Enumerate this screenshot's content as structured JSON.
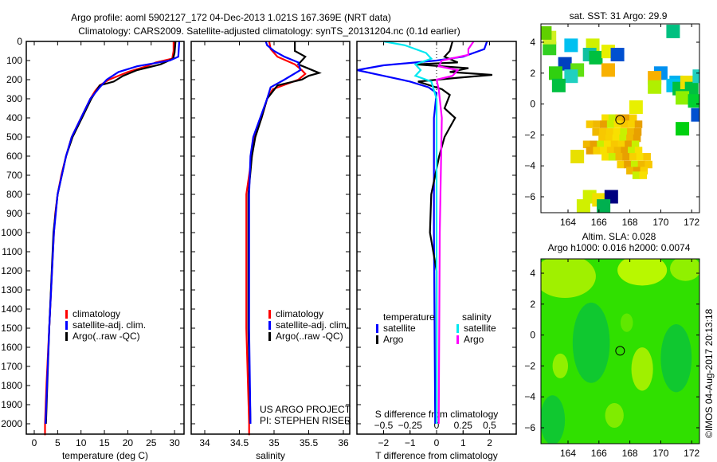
{
  "header": {
    "title_line1": "Argo profile: aoml 5902127_172 04-Dec-2013 1.021S 167.369E (NRT data)",
    "title_line2": "Climatology: CARS2009. Satellite-adjusted climatology: synTS_20131204.nc (0.1d earlier)"
  },
  "credit": {
    "project": "US ARGO PROJECT",
    "pi": "PI: STEPHEN RISER",
    "stamp": "©IMOS 04-Aug-2017 20:13:18"
  },
  "colors": {
    "climatology": "#ff0000",
    "satellite": "#0000ff",
    "argo": "#000000",
    "sal_satellite": "#00e8f0",
    "sal_argo": "#ff00ff"
  },
  "chart_data": [
    {
      "type": "line",
      "id": "temperature",
      "xlabel": "temperature (deg C)",
      "ylabel": "depth",
      "xlim": [
        -2.5,
        32
      ],
      "ylim": [
        2060,
        0
      ],
      "xticks": [
        0,
        5,
        10,
        15,
        20,
        25,
        30
      ],
      "yticks": [
        0,
        100,
        200,
        300,
        400,
        500,
        600,
        700,
        800,
        900,
        1000,
        1100,
        1200,
        1300,
        1400,
        1500,
        1600,
        1700,
        1800,
        1900,
        2000
      ],
      "legend": [
        "climatology",
        "satellite-adj. clim.",
        "Argo(..raw -QC)"
      ],
      "series": [
        {
          "name": "climatology",
          "color": "#ff0000",
          "depth": [
            0,
            50,
            90,
            110,
            130,
            160,
            200,
            230,
            260,
            300,
            400,
            500,
            600,
            700,
            800,
            900,
            1000,
            1200,
            1400,
            1600,
            1800,
            2000,
            2060
          ],
          "values": [
            29.8,
            29.8,
            29.5,
            26,
            24,
            20,
            16,
            14,
            13,
            12,
            10,
            8,
            6.8,
            5.8,
            5,
            4.5,
            4.2,
            3.8,
            3.4,
            3,
            2.6,
            2.3,
            2.3
          ]
        },
        {
          "name": "Argo(..raw -QC)",
          "color": "#000000",
          "depth": [
            0,
            60,
            90,
            120,
            150,
            180,
            210,
            230,
            300,
            400,
            500,
            600,
            800,
            1000,
            1500,
            2000
          ],
          "values": [
            30.2,
            30,
            29.7,
            27,
            22,
            19,
            17,
            14,
            12.2,
            10.2,
            8.2,
            6.8,
            5,
            4.1,
            3.2,
            2.5
          ]
        },
        {
          "name": "satellite-adj. clim.",
          "color": "#0000ff",
          "depth": [
            0,
            80,
            100,
            130,
            160,
            200,
            240,
            300,
            400,
            500,
            600,
            800,
            1000,
            1500,
            2000
          ],
          "values": [
            31,
            30.8,
            29,
            22,
            18,
            15.5,
            14,
            12,
            10,
            8,
            6.8,
            5,
            4.2,
            3.2,
            2.4
          ]
        }
      ]
    },
    {
      "type": "line",
      "id": "salinity",
      "xlabel": "salinity",
      "xlim": [
        33.8,
        36.1
      ],
      "ylim": [
        2060,
        0
      ],
      "xticks": [
        34,
        34.5,
        35,
        35.5,
        36
      ],
      "legend": [
        "climatology",
        "satellite-adj. clim.",
        "Argo(..raw -QC)"
      ],
      "series": [
        {
          "name": "climatology",
          "color": "#ff0000",
          "depth": [
            0,
            40,
            80,
            120,
            150,
            170,
            200,
            250,
            300,
            400,
            500,
            600,
            800,
            1000,
            1500,
            2000,
            2060
          ],
          "values": [
            34.93,
            34.95,
            35.05,
            35.3,
            35.4,
            35.45,
            35.35,
            34.98,
            34.9,
            34.82,
            34.72,
            34.68,
            34.6,
            34.6,
            34.6,
            34.64,
            34.64
          ]
        },
        {
          "name": "Argo(..raw -QC)",
          "color": "#000000",
          "depth": [
            0,
            50,
            80,
            120,
            165,
            180,
            200,
            230,
            300,
            400,
            500,
            600,
            800,
            1000,
            1500,
            2000
          ],
          "values": [
            35.3,
            35.3,
            35.45,
            35.35,
            35.65,
            35.5,
            35.4,
            35.05,
            34.9,
            34.82,
            34.73,
            34.68,
            34.63,
            34.63,
            34.63,
            34.66
          ]
        },
        {
          "name": "satellite-adj. clim.",
          "color": "#0000ff",
          "depth": [
            0,
            20,
            50,
            80,
            110,
            150,
            200,
            240,
            300,
            400,
            500,
            600,
            800,
            1000,
            1500,
            2000
          ],
          "values": [
            34.88,
            34.9,
            35.0,
            35.15,
            35.35,
            35.38,
            35.15,
            34.95,
            34.9,
            34.8,
            34.7,
            34.66,
            34.64,
            34.64,
            34.64,
            34.66
          ]
        }
      ]
    },
    {
      "type": "line",
      "id": "difference",
      "xlabel": "T difference from climatology",
      "x2label": "S difference from climatology",
      "xlim": [
        -3,
        3
      ],
      "x2lim": [
        -0.75,
        0.75
      ],
      "xticks": [
        -2,
        -1,
        0,
        1,
        2
      ],
      "x2ticks": [
        -0.5,
        -0.25,
        0,
        0.25,
        0.5
      ],
      "ylim": [
        2060,
        0
      ],
      "legend_headers": [
        "temperature",
        "salinity"
      ],
      "legend_items": [
        "satellite",
        "Argo",
        "satellite",
        "Argo"
      ],
      "series": [
        {
          "name": "T satellite",
          "axis": "T",
          "color": "#0000ff",
          "depth": [
            0,
            40,
            80,
            100,
            125,
            150,
            180,
            210,
            240,
            270,
            400,
            1000,
            2000
          ],
          "values": [
            1.9,
            1.8,
            1.0,
            0,
            -2,
            -3,
            -2,
            -1,
            -0.3,
            0,
            -0.1,
            -0.1,
            -0.05
          ]
        },
        {
          "name": "T Argo",
          "axis": "T",
          "color": "#000000",
          "depth": [
            0,
            50,
            80,
            110,
            120,
            140,
            160,
            175,
            190,
            210,
            250,
            280,
            350,
            400,
            450,
            500,
            600,
            800,
            1000,
            1200,
            1500,
            2000
          ],
          "values": [
            0.6,
            0.5,
            0.3,
            0.8,
            -0.8,
            1.2,
            0.5,
            2.1,
            0.8,
            -0.7,
            0.2,
            0.5,
            0.3,
            0.7,
            0.5,
            0.3,
            0.1,
            -0.2,
            -0.25,
            0,
            0,
            0
          ]
        },
        {
          "name": "S satellite",
          "axis": "S",
          "color": "#00e8f0",
          "depth": [
            0,
            20,
            60,
            90,
            120,
            150,
            180,
            210,
            300,
            2000
          ],
          "values": [
            -0.5,
            -0.3,
            -0.1,
            -0.05,
            -0.2,
            -0.15,
            -0.2,
            -0.05,
            0,
            0
          ]
        },
        {
          "name": "S Argo",
          "axis": "S",
          "color": "#ff00ff",
          "depth": [
            0,
            40,
            70,
            100,
            130,
            150,
            180,
            200,
            250,
            400,
            1000,
            2000
          ],
          "values": [
            0.35,
            0.3,
            0.3,
            0.05,
            0.02,
            0.2,
            0.15,
            0,
            0.02,
            0.05,
            0.03,
            0.02
          ]
        }
      ]
    },
    {
      "type": "scatter",
      "id": "sst-map",
      "title": "sat. SST: 31 Argo: 29.9",
      "xlim": [
        162.3,
        172.5
      ],
      "ylim": [
        -7,
        5.1
      ],
      "xticks": [
        164,
        166,
        168,
        170,
        172
      ],
      "yticks": [
        4,
        2,
        0,
        -2,
        -4,
        -6
      ],
      "profile_location": [
        167.369,
        -1.021
      ],
      "cells": [
        [
          164.2,
          3.8,
          "#00c0f0"
        ],
        [
          165.6,
          3.8,
          "#d0f000"
        ],
        [
          162.8,
          3.6,
          "#30d020"
        ],
        [
          162.8,
          4.3,
          "#d0f020"
        ],
        [
          162.5,
          4.6,
          "#60d000"
        ],
        [
          165.4,
          3.2,
          "#10c0a0"
        ],
        [
          165.8,
          3.0,
          "#00c040"
        ],
        [
          166.6,
          3.4,
          "#e8f000"
        ],
        [
          167.2,
          3.2,
          "#0050d0"
        ],
        [
          163.8,
          2.6,
          "#0040c0"
        ],
        [
          164.6,
          2.2,
          "#60e010"
        ],
        [
          163.2,
          2.0,
          "#30d010"
        ],
        [
          164.2,
          1.8,
          "#20d0c0"
        ],
        [
          163.4,
          1.2,
          "#00c040"
        ],
        [
          166.6,
          2.2,
          "#f8b000"
        ],
        [
          170.0,
          2.0,
          "#0090f0"
        ],
        [
          169.6,
          1.7,
          "#f8b000"
        ],
        [
          169.6,
          1.1,
          "#b0f000"
        ],
        [
          171.0,
          1.4,
          "#00b0f0"
        ],
        [
          170.8,
          1.2,
          "#00c0f0"
        ],
        [
          171.2,
          1.0,
          "#00c040"
        ],
        [
          171.7,
          1.4,
          "#f0e000"
        ],
        [
          172.0,
          1.0,
          "#00c040"
        ],
        [
          171.4,
          0.4,
          "#90f000"
        ],
        [
          172.2,
          0.2,
          "#00d030"
        ],
        [
          172.4,
          -0.7,
          "#0050d0"
        ],
        [
          171.4,
          -1.6,
          "#00d010"
        ],
        [
          170.8,
          4.7,
          "#00c080"
        ],
        [
          172.5,
          1.8,
          "#20d0c0"
        ],
        [
          168.4,
          -0.2,
          "#e8f000"
        ],
        [
          164.6,
          -3.4,
          "#e8e000"
        ],
        [
          165.4,
          -6.0,
          "#d0f000"
        ],
        [
          165.0,
          -6.6,
          "#d0f000"
        ],
        [
          166.0,
          -6.2,
          "#f0e000"
        ],
        [
          166.8,
          -6.0,
          "#000080"
        ],
        [
          166.3,
          -6.6,
          "#00b050"
        ]
      ],
      "blob_rows": [
        [
          -0.9,
          166.4,
          168.6
        ],
        [
          -1.3,
          165.4,
          168.8
        ],
        [
          -1.8,
          165.8,
          168.8
        ],
        [
          -2.2,
          166.2,
          168.6
        ],
        [
          -2.6,
          165.2,
          168.6
        ],
        [
          -3.0,
          165.4,
          168.6
        ],
        [
          -3.4,
          166.4,
          169.3
        ],
        [
          -3.9,
          167.4,
          169.6
        ],
        [
          -4.3,
          168.0,
          169.2
        ],
        [
          -4.6,
          168.4,
          168.9
        ]
      ],
      "blob_colors": [
        "#f8d000",
        "#f0b800",
        "#f8e000",
        "#e8a000",
        "#f8c800",
        "#c8f000"
      ]
    },
    {
      "type": "heatmap",
      "id": "sla-map",
      "title": "Altim. SLA: 0.028",
      "subtitle": "Argo h1000: 0.016 h2000: 0.0074",
      "xlim": [
        162.3,
        172.5
      ],
      "ylim": [
        -7,
        5.1
      ],
      "xticks": [
        164,
        166,
        168,
        170,
        172
      ],
      "yticks": [
        4,
        2,
        0,
        -2,
        -4,
        -6
      ],
      "profile_location": [
        167.369,
        -1.021
      ],
      "base_color": "#30e000",
      "features": [
        [
          163.8,
          3.8,
          2.0,
          1.4,
          "#a0f000"
        ],
        [
          168.8,
          4.2,
          1.6,
          1.0,
          "#b8f800"
        ],
        [
          171.6,
          4.3,
          1.0,
          0.8,
          "#90f000"
        ],
        [
          165.5,
          -0.5,
          1.2,
          2.6,
          "#10c830"
        ],
        [
          171.0,
          -1.5,
          1.0,
          2.2,
          "#10c830"
        ],
        [
          163.0,
          -5.5,
          0.8,
          1.6,
          "#10c830"
        ],
        [
          168.8,
          -2.2,
          0.7,
          1.4,
          "#a0f000"
        ],
        [
          163.5,
          -2.0,
          0.5,
          0.8,
          "#90f000"
        ],
        [
          167.0,
          -5.2,
          0.6,
          0.8,
          "#80ec00"
        ],
        [
          167.8,
          0.8,
          0.4,
          0.6,
          "#60e800"
        ]
      ]
    }
  ]
}
